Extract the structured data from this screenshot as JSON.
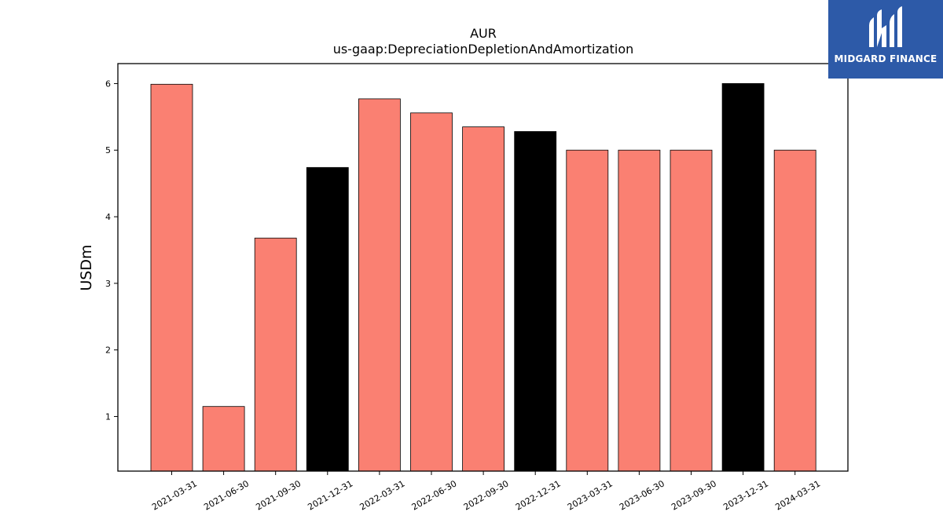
{
  "brand": {
    "name": "MIDGARD FINANCE",
    "background_color": "#2d5aa8",
    "logo_icon": "midgard-logo-icon"
  },
  "chart_data": {
    "type": "bar",
    "title": "AUR",
    "subtitle": "us-gaap:DepreciationDepletionAndAmortization",
    "xlabel": "",
    "ylabel": "USDm",
    "categories": [
      "2021-03-31",
      "2021-06-30",
      "2021-09-30",
      "2021-12-31",
      "2022-03-31",
      "2022-06-30",
      "2022-09-30",
      "2022-12-31",
      "2023-03-31",
      "2023-06-30",
      "2023-09-30",
      "2023-12-31",
      "2024-03-31"
    ],
    "values": [
      5.99,
      1.15,
      3.68,
      4.74,
      5.77,
      5.56,
      5.35,
      5.28,
      5.0,
      5.0,
      5.0,
      6.0,
      5.0
    ],
    "bar_colors": [
      "#fa8072",
      "#fa8072",
      "#fa8072",
      "#000000",
      "#fa8072",
      "#fa8072",
      "#fa8072",
      "#000000",
      "#fa8072",
      "#fa8072",
      "#fa8072",
      "#000000",
      "#fa8072"
    ],
    "yticks": [
      1,
      2,
      3,
      4,
      5,
      6
    ],
    "ylim": [
      0.18,
      6.3
    ],
    "grid": false,
    "legend": "none"
  }
}
